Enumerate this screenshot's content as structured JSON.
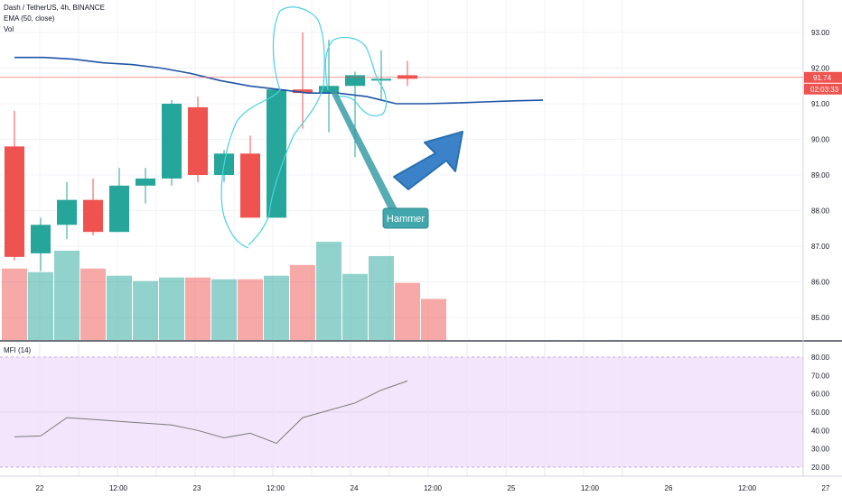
{
  "legend": {
    "symbol": "Dash / TetherUS, 4h, BINANCE",
    "ema": "EMA (50, close)",
    "vol": "Vol",
    "mfi": "MFI (14)"
  },
  "price_badge": {
    "price": "91.74",
    "countdown": "02:03:33",
    "color": "#ef5350"
  },
  "annotations": {
    "callout": "Hammer"
  },
  "colors": {
    "up": "#26a69a",
    "down": "#ef5350",
    "ema": "#1e53a6",
    "mfi": "#7b7b7b",
    "arrow": "#3b82c8",
    "drawing": "#4dd0e1",
    "mfi_band": "#f3e5fc"
  },
  "chart_data": [
    {
      "type": "candlestick",
      "title": "Dash / TetherUS, 4h, BINANCE",
      "price_range": [
        84.6,
        93.8
      ],
      "price_ticks": [
        "93.00",
        "92.00",
        "91.00",
        "90.00",
        "89.00",
        "88.00",
        "87.00",
        "86.00",
        "85.00"
      ],
      "price_tick_values": [
        93,
        92,
        91,
        90,
        89,
        88,
        87,
        86,
        85
      ],
      "time_ticks": [
        "22",
        "12:00",
        "23",
        "12:00",
        "24",
        "12:00",
        "25",
        "12:00",
        "26",
        "12:00",
        "27"
      ],
      "candles": [
        {
          "o": 89.8,
          "h": 90.8,
          "l": 86.6,
          "c": 86.7
        },
        {
          "o": 86.8,
          "h": 87.8,
          "l": 86.3,
          "c": 87.6
        },
        {
          "o": 87.6,
          "h": 88.8,
          "l": 87.2,
          "c": 88.3
        },
        {
          "o": 88.3,
          "h": 88.9,
          "l": 87.3,
          "c": 87.4
        },
        {
          "o": 87.4,
          "h": 89.2,
          "l": 87.4,
          "c": 88.7
        },
        {
          "o": 88.7,
          "h": 89.2,
          "l": 88.2,
          "c": 88.9
        },
        {
          "o": 88.9,
          "h": 91.1,
          "l": 88.7,
          "c": 91.0
        },
        {
          "o": 90.9,
          "h": 91.2,
          "l": 88.8,
          "c": 89.0
        },
        {
          "o": 89.0,
          "h": 89.7,
          "l": 88.8,
          "c": 89.6
        },
        {
          "o": 89.6,
          "h": 90.1,
          "l": 87.8,
          "c": 87.8
        },
        {
          "o": 87.8,
          "h": 91.4,
          "l": 87.8,
          "c": 91.4
        },
        {
          "o": 91.4,
          "h": 93.0,
          "l": 90.3,
          "c": 91.3
        },
        {
          "o": 91.3,
          "h": 92.8,
          "l": 90.2,
          "c": 91.5
        },
        {
          "o": 91.5,
          "h": 91.9,
          "l": 89.5,
          "c": 91.8
        },
        {
          "o": 91.7,
          "h": 92.5,
          "l": 91.1,
          "c": 91.7
        },
        {
          "o": 91.8,
          "h": 92.2,
          "l": 91.5,
          "c": 91.7
        }
      ],
      "ema": [
        92.3,
        92.3,
        92.25,
        92.15,
        92.1,
        92.0,
        91.85,
        91.65,
        91.5,
        91.4,
        91.3,
        91.3,
        91.2,
        91.0,
        91.0,
        91.02,
        91.05,
        91.08,
        91.1
      ],
      "volume": [
        40,
        38,
        50,
        40,
        36,
        33,
        35,
        35,
        34,
        34,
        36,
        42,
        55,
        37,
        47,
        32,
        23
      ],
      "volume_range": [
        0,
        100
      ],
      "current_price": 91.74
    },
    {
      "type": "line",
      "title": "MFI (14)",
      "y_range": [
        15,
        82
      ],
      "y_ticks": [
        "80.00",
        "70.00",
        "60.00",
        "50.00",
        "40.00",
        "30.00",
        "20.00"
      ],
      "y_tick_values": [
        80,
        70,
        60,
        50,
        40,
        30,
        20
      ],
      "band": [
        20,
        80
      ],
      "values": [
        36.5,
        37,
        47,
        46,
        45,
        44,
        43,
        40,
        36,
        38.5,
        33,
        47,
        51,
        55,
        62,
        67
      ]
    }
  ]
}
